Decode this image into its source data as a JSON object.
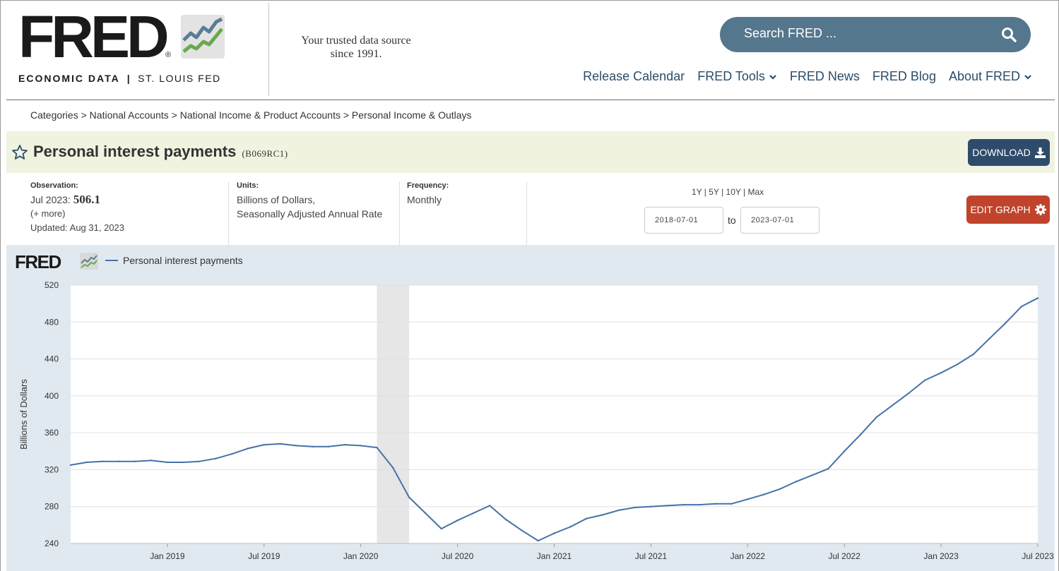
{
  "header": {
    "logo_word": "FRED",
    "logo_reg": "®",
    "logo_sub_left": "ECONOMIC DATA",
    "logo_sub_sep": "|",
    "logo_sub_right": "ST. LOUIS FED",
    "tagline_line1": "Your trusted data source",
    "tagline_line2": "since 1991.",
    "search_placeholder": "Search FRED ...",
    "nav": [
      "Release Calendar",
      "FRED Tools",
      "FRED News",
      "FRED Blog",
      "About FRED"
    ]
  },
  "breadcrumb": {
    "items": [
      "Categories",
      "National Accounts",
      "National Income & Product Accounts",
      "Personal Income & Outlays"
    ],
    "separator": " > "
  },
  "series": {
    "title": "Personal interest payments",
    "id": "(B069RC1)",
    "download_label": "DOWNLOAD"
  },
  "meta": {
    "observation_label": "Observation:",
    "observation_date": "Jul 2023:",
    "observation_value": "506.1",
    "more_link": "(+ more)",
    "updated": "Updated: Aug 31, 2023",
    "units_label": "Units:",
    "units_line1": "Billions of Dollars,",
    "units_line2": "Seasonally Adjusted Annual Rate",
    "frequency_label": "Frequency:",
    "frequency_value": "Monthly",
    "range_links": [
      "1Y",
      "5Y",
      "10Y",
      "Max"
    ],
    "range_sep": " | ",
    "date_from": "2018-07-01",
    "to_label": "to",
    "date_to": "2023-07-01",
    "edit_label": "EDIT GRAPH"
  },
  "chart_logo": "FRED",
  "colors": {
    "series": "#4572a7",
    "recession": "#e6e6e6",
    "accent": "#55778d",
    "download": "#2e4b6b",
    "edit": "#c0432c"
  },
  "chart_data": {
    "type": "line",
    "ylabel": "Billions of Dollars",
    "ylim": [
      240,
      520
    ],
    "yticks": [
      240,
      280,
      320,
      360,
      400,
      440,
      480,
      520
    ],
    "xticks": [
      "Jan 2019",
      "Jul 2019",
      "Jan 2020",
      "Jul 2020",
      "Jan 2021",
      "Jul 2021",
      "Jan 2022",
      "Jul 2022",
      "Jan 2023",
      "Jul 2023"
    ],
    "xtick_months": [
      6,
      12,
      18,
      24,
      30,
      36,
      42,
      48,
      54,
      60
    ],
    "recession": {
      "start_month": 19,
      "end_month": 21
    },
    "legend_position": "top-left",
    "grid": true,
    "series": [
      {
        "name": "Personal interest payments",
        "x": [
          "2018-07",
          "2018-08",
          "2018-09",
          "2018-10",
          "2018-11",
          "2018-12",
          "2019-01",
          "2019-02",
          "2019-03",
          "2019-04",
          "2019-05",
          "2019-06",
          "2019-07",
          "2019-08",
          "2019-09",
          "2019-10",
          "2019-11",
          "2019-12",
          "2020-01",
          "2020-02",
          "2020-03",
          "2020-04",
          "2020-05",
          "2020-06",
          "2020-07",
          "2020-08",
          "2020-09",
          "2020-10",
          "2020-11",
          "2020-12",
          "2021-01",
          "2021-02",
          "2021-03",
          "2021-04",
          "2021-05",
          "2021-06",
          "2021-07",
          "2021-08",
          "2021-09",
          "2021-10",
          "2021-11",
          "2021-12",
          "2022-01",
          "2022-02",
          "2022-03",
          "2022-04",
          "2022-05",
          "2022-06",
          "2022-07",
          "2022-08",
          "2022-09",
          "2022-10",
          "2022-11",
          "2022-12",
          "2023-01",
          "2023-02",
          "2023-03",
          "2023-04",
          "2023-05",
          "2023-06",
          "2023-07"
        ],
        "values": [
          325,
          328,
          329,
          329,
          329,
          330,
          328,
          328,
          329,
          332,
          337,
          343,
          347,
          348,
          346,
          345,
          345,
          347,
          346,
          344,
          322,
          290,
          273,
          256,
          265,
          273,
          281,
          266,
          254,
          243,
          251,
          258,
          267,
          271,
          276,
          279,
          280,
          281,
          282,
          282,
          283,
          283,
          288,
          293,
          299,
          307,
          314,
          321,
          340,
          358,
          377,
          390,
          403,
          417,
          425,
          434,
          445,
          462,
          479,
          497,
          506
        ]
      }
    ]
  }
}
